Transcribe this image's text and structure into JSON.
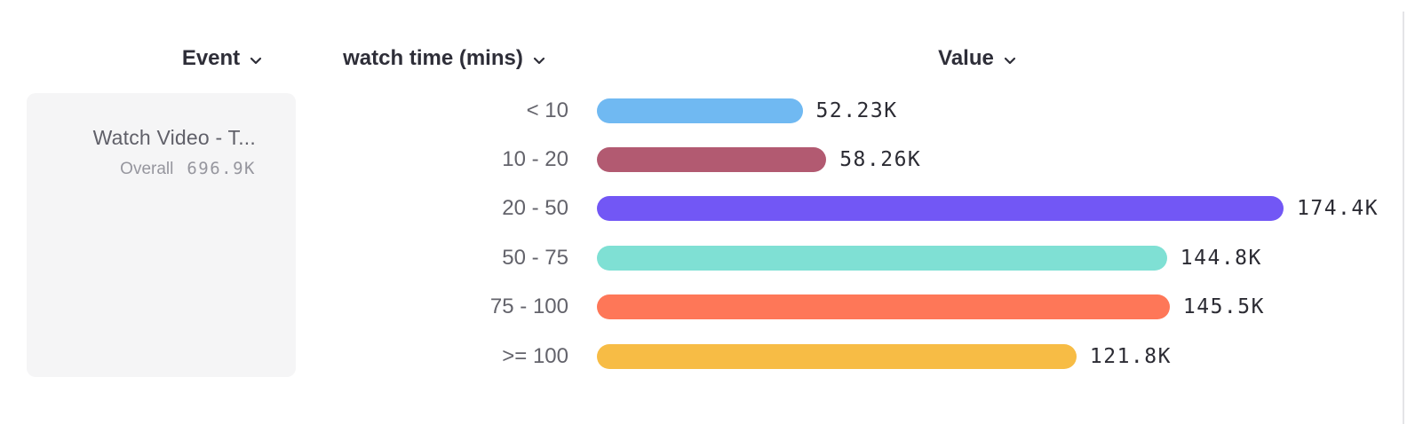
{
  "header": {
    "columns": [
      {
        "id": "event",
        "label": "Event"
      },
      {
        "id": "breakdown",
        "label": "watch time (mins)"
      },
      {
        "id": "value",
        "label": "Value"
      }
    ]
  },
  "event_panel": {
    "event_name": "Watch Video - T...",
    "overall_label": "Overall",
    "overall_value": "696.9K"
  },
  "chart_data": {
    "type": "bar",
    "orientation": "horizontal",
    "title": "",
    "xlabel": "Value",
    "ylabel": "watch time (mins)",
    "grid": false,
    "legend_position": "left-panel",
    "categories": [
      "< 10",
      "10 - 20",
      "20 - 50",
      "50 - 75",
      "75 - 100",
      ">= 100"
    ],
    "values": [
      52230,
      58260,
      174400,
      144800,
      145500,
      121800
    ],
    "value_labels": [
      "52.23K",
      "58.26K",
      "174.4K",
      "144.8K",
      "145.5K",
      "121.8K"
    ],
    "bar_colors": [
      "#70b9f2",
      "#b25a71",
      "#7257f5",
      "#7fe0d4",
      "#fe7758",
      "#f7bc45"
    ],
    "xlim": [
      0,
      174400
    ],
    "total_label": "Overall",
    "total_value": "696.9K"
  },
  "colors": {
    "header_text": "#2e2e38",
    "category_label": "#63636b",
    "value_text": "#2b2b33",
    "panel_bg": "#f5f5f6",
    "muted_text": "#96969e",
    "edge_line": "#e4e4e7"
  }
}
